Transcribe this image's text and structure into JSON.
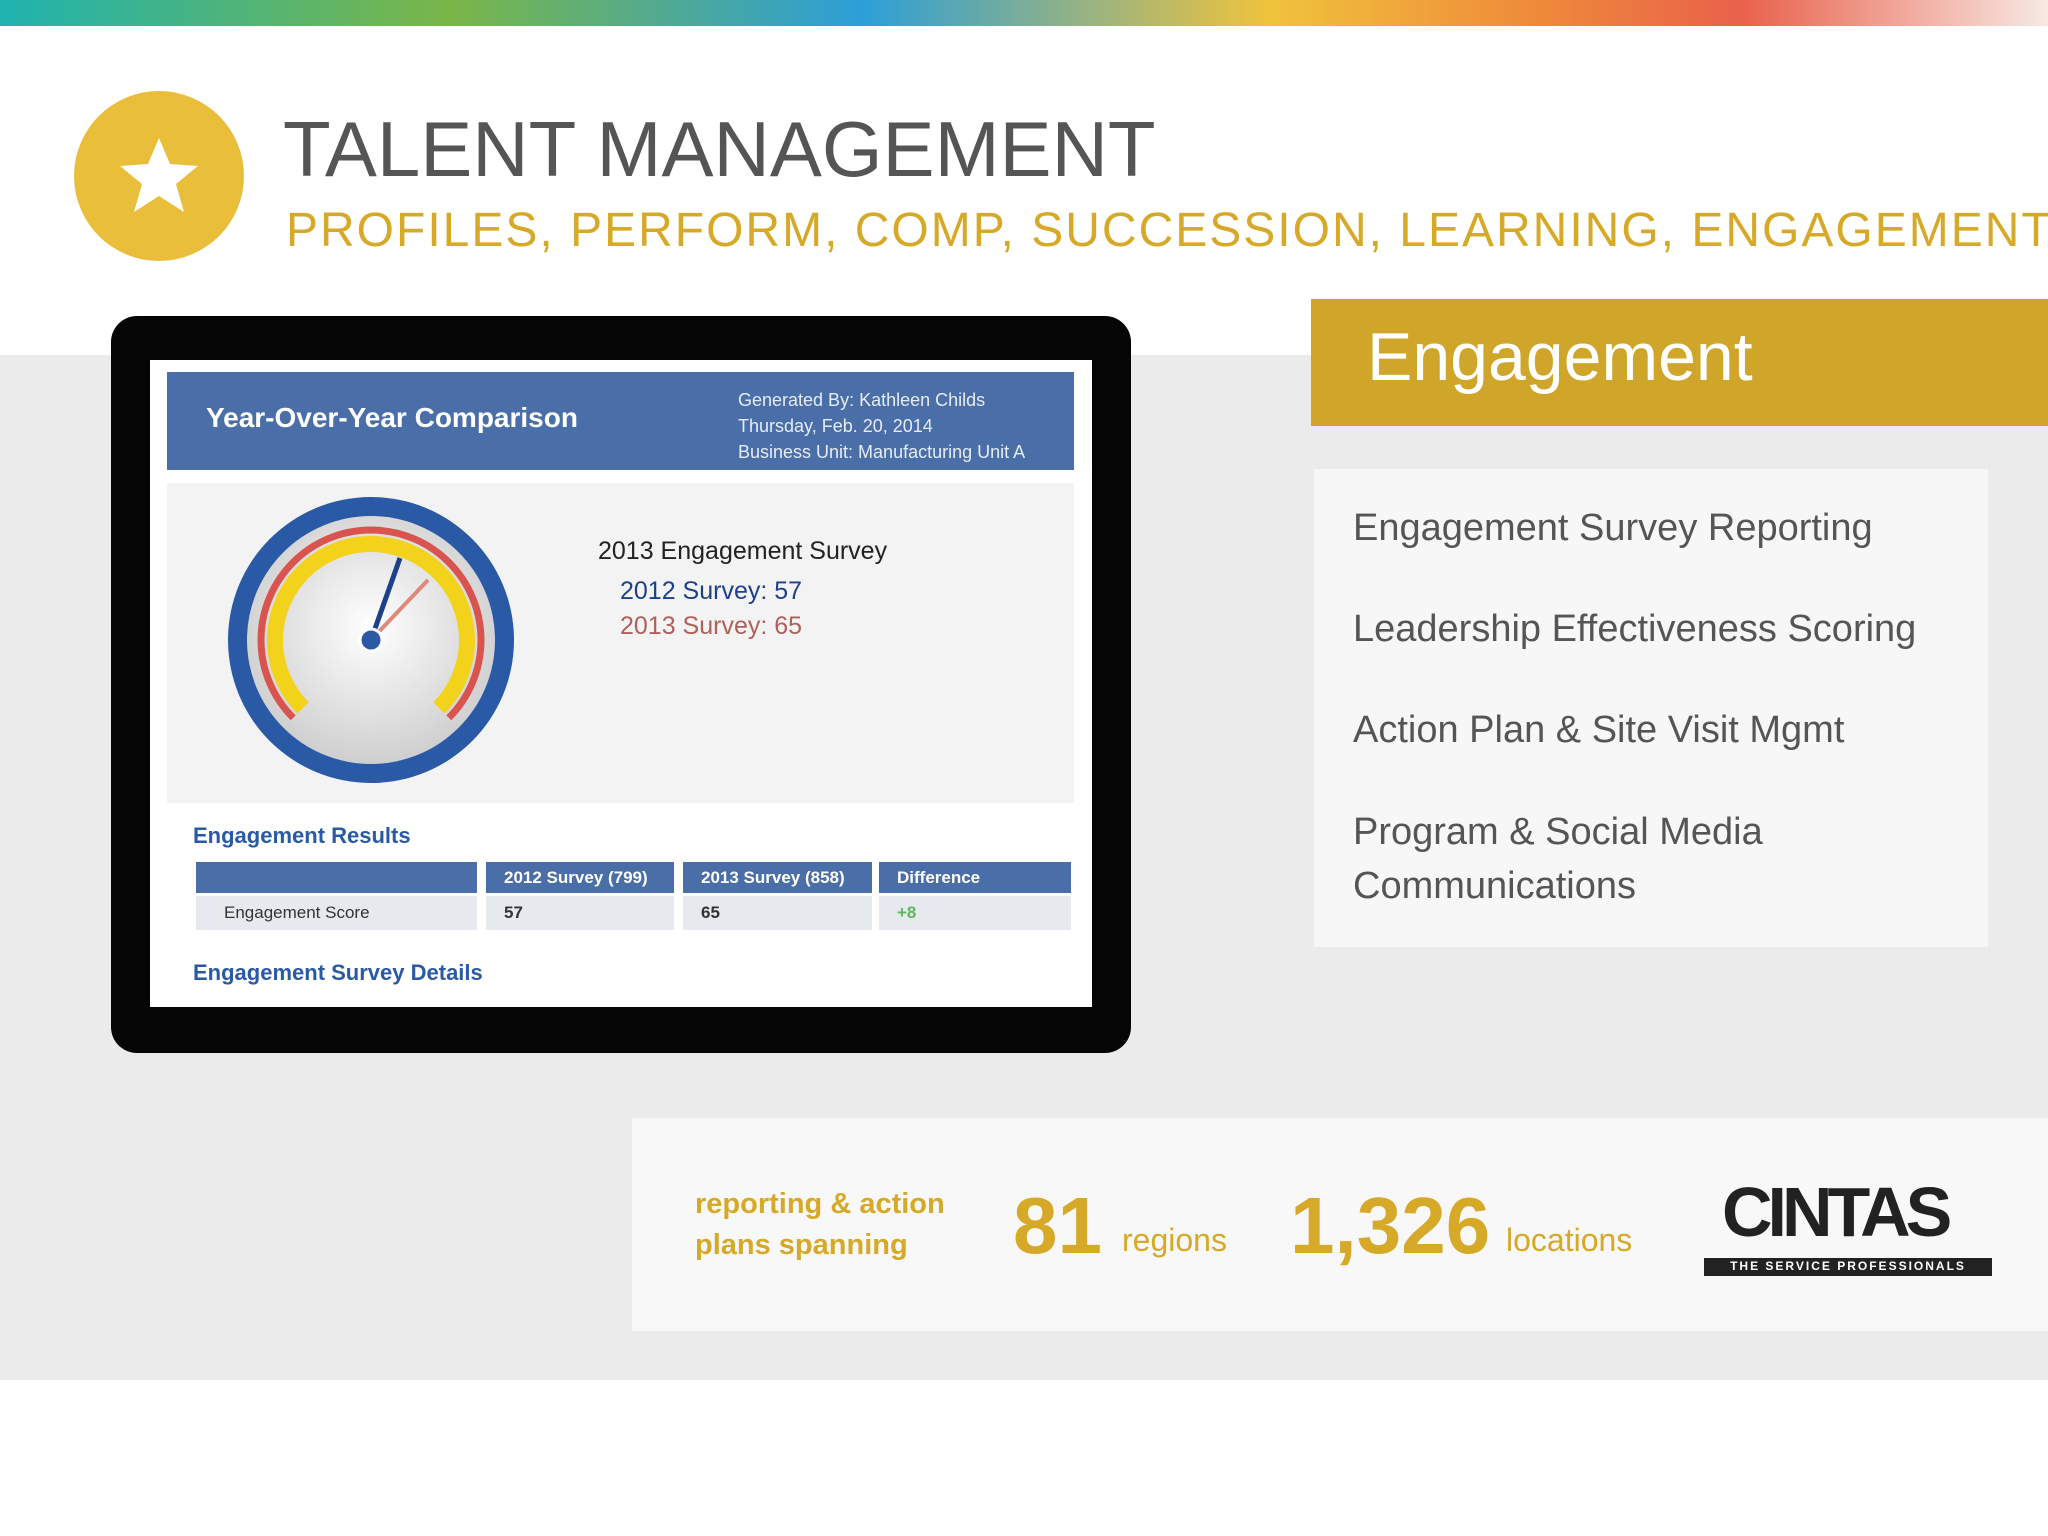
{
  "header": {
    "title": "TALENT MANAGEMENT",
    "subtitle": "PROFILES, PERFORM, COMP, SUCCESSION, LEARNING, ENGAGEMENT"
  },
  "report": {
    "title": "Year-Over-Year Comparison",
    "meta": [
      "Generated By:  Kathleen Childs",
      "Thursday, Feb. 20, 2014",
      "Business Unit:  Manufacturing Unit A"
    ],
    "survey_heading": "2013 Engagement Survey",
    "survey_lines": [
      "2012 Survey:  57",
      "2013 Survey:  65"
    ],
    "results_heading": "Engagement Results",
    "table": {
      "header": [
        "2012 Survey (799)",
        "2013 Survey (858)",
        "Difference"
      ],
      "row": [
        "Engagement Score",
        "57",
        "65",
        "+8"
      ]
    },
    "details_heading": "Engagement Survey Details"
  },
  "panel": {
    "title": "Engagement",
    "items": [
      "Engagement Survey Reporting",
      "Leadership Effectiveness Scoring",
      "Action Plan & Site Visit Mgmt",
      "Program & Social Media Communications"
    ]
  },
  "stats": {
    "lead": [
      "reporting & action",
      "plans spanning"
    ],
    "regions_value": "81",
    "regions_label": "regions",
    "locations_value": "1,326",
    "locations_label": "locations"
  },
  "logo": {
    "name": "CINTAS",
    "tagline": "THE SERVICE PROFESSIONALS"
  }
}
